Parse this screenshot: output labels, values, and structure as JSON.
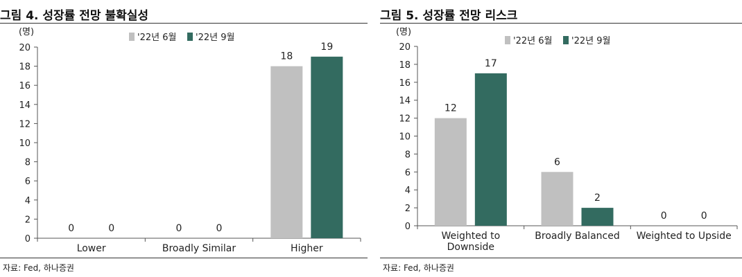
{
  "charts": [
    {
      "figure_title": "그림 4. 성장률 전망 불확실성",
      "source": "자료: Fed, 하나증권",
      "colors": {
        "series1": "#c0c0c0",
        "series2": "#336b60",
        "axis": "#555555"
      },
      "chart_data": {
        "type": "bar",
        "unit_label": "(명)",
        "categories": [
          [
            "Lower"
          ],
          [
            "Broadly Similar"
          ],
          [
            "Higher"
          ]
        ],
        "series": [
          {
            "name": "'22년 6월",
            "values": [
              0,
              0,
              18
            ]
          },
          {
            "name": "'22년 9월",
            "values": [
              0,
              0,
              19
            ]
          }
        ],
        "ylim": [
          0,
          20
        ],
        "yticks": [
          0,
          2,
          4,
          6,
          8,
          10,
          12,
          14,
          16,
          18,
          20
        ],
        "legend": "top-right",
        "grid": false
      }
    },
    {
      "figure_title": "그림 5. 성장률 전망 리스크",
      "source": "자료: Fed, 하나증권",
      "colors": {
        "series1": "#c0c0c0",
        "series2": "#336b60",
        "axis": "#555555"
      },
      "chart_data": {
        "type": "bar",
        "unit_label": "(명)",
        "categories": [
          [
            "Weighted to",
            "Downside"
          ],
          [
            "Broadly Balanced"
          ],
          [
            "Weighted to Upside"
          ]
        ],
        "series": [
          {
            "name": "'22년 6월",
            "values": [
              12,
              6,
              0
            ]
          },
          {
            "name": "'22년 9월",
            "values": [
              17,
              2,
              0
            ]
          }
        ],
        "ylim": [
          0,
          20
        ],
        "yticks": [
          0,
          2,
          4,
          6,
          8,
          10,
          12,
          14,
          16,
          18,
          20
        ],
        "legend": "top-center",
        "grid": false
      }
    }
  ]
}
